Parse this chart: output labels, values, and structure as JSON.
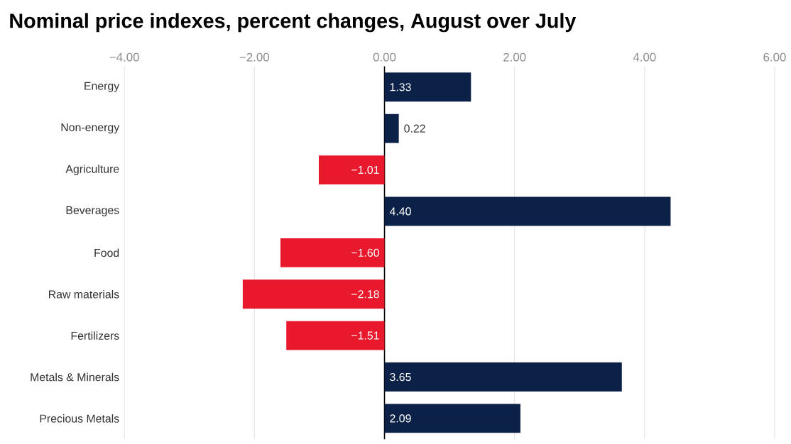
{
  "chart_data": {
    "type": "bar",
    "orientation": "horizontal",
    "title": "Nominal price indexes, percent changes, August over July",
    "categories": [
      "Energy",
      "Non-energy",
      "Agriculture",
      "Beverages",
      "Food",
      "Raw materials",
      "Fertilizers",
      "Metals & Minerals",
      "Precious Metals"
    ],
    "values": [
      1.33,
      0.22,
      -1.01,
      4.4,
      -1.6,
      -2.18,
      -1.51,
      3.65,
      2.09
    ],
    "colors": [
      "#0c2147",
      "#0c2147",
      "#e8192c",
      "#0c2147",
      "#e8192c",
      "#e8192c",
      "#e8192c",
      "#0c2147",
      "#0c2147"
    ],
    "value_labels": [
      "1.33",
      "0.22",
      "−1.01",
      "4.40",
      "−1.60",
      "−2.18",
      "−1.51",
      "3.65",
      "2.09"
    ],
    "xlim": [
      -4,
      6
    ],
    "xticks": [
      {
        "value": -4,
        "label": "−4.00"
      },
      {
        "value": -2,
        "label": "−2.00"
      },
      {
        "value": 0,
        "label": "0.00"
      },
      {
        "value": 2,
        "label": "2.00"
      },
      {
        "value": 4,
        "label": "4.00"
      },
      {
        "value": 6,
        "label": "6.00"
      }
    ],
    "grid": "x"
  }
}
